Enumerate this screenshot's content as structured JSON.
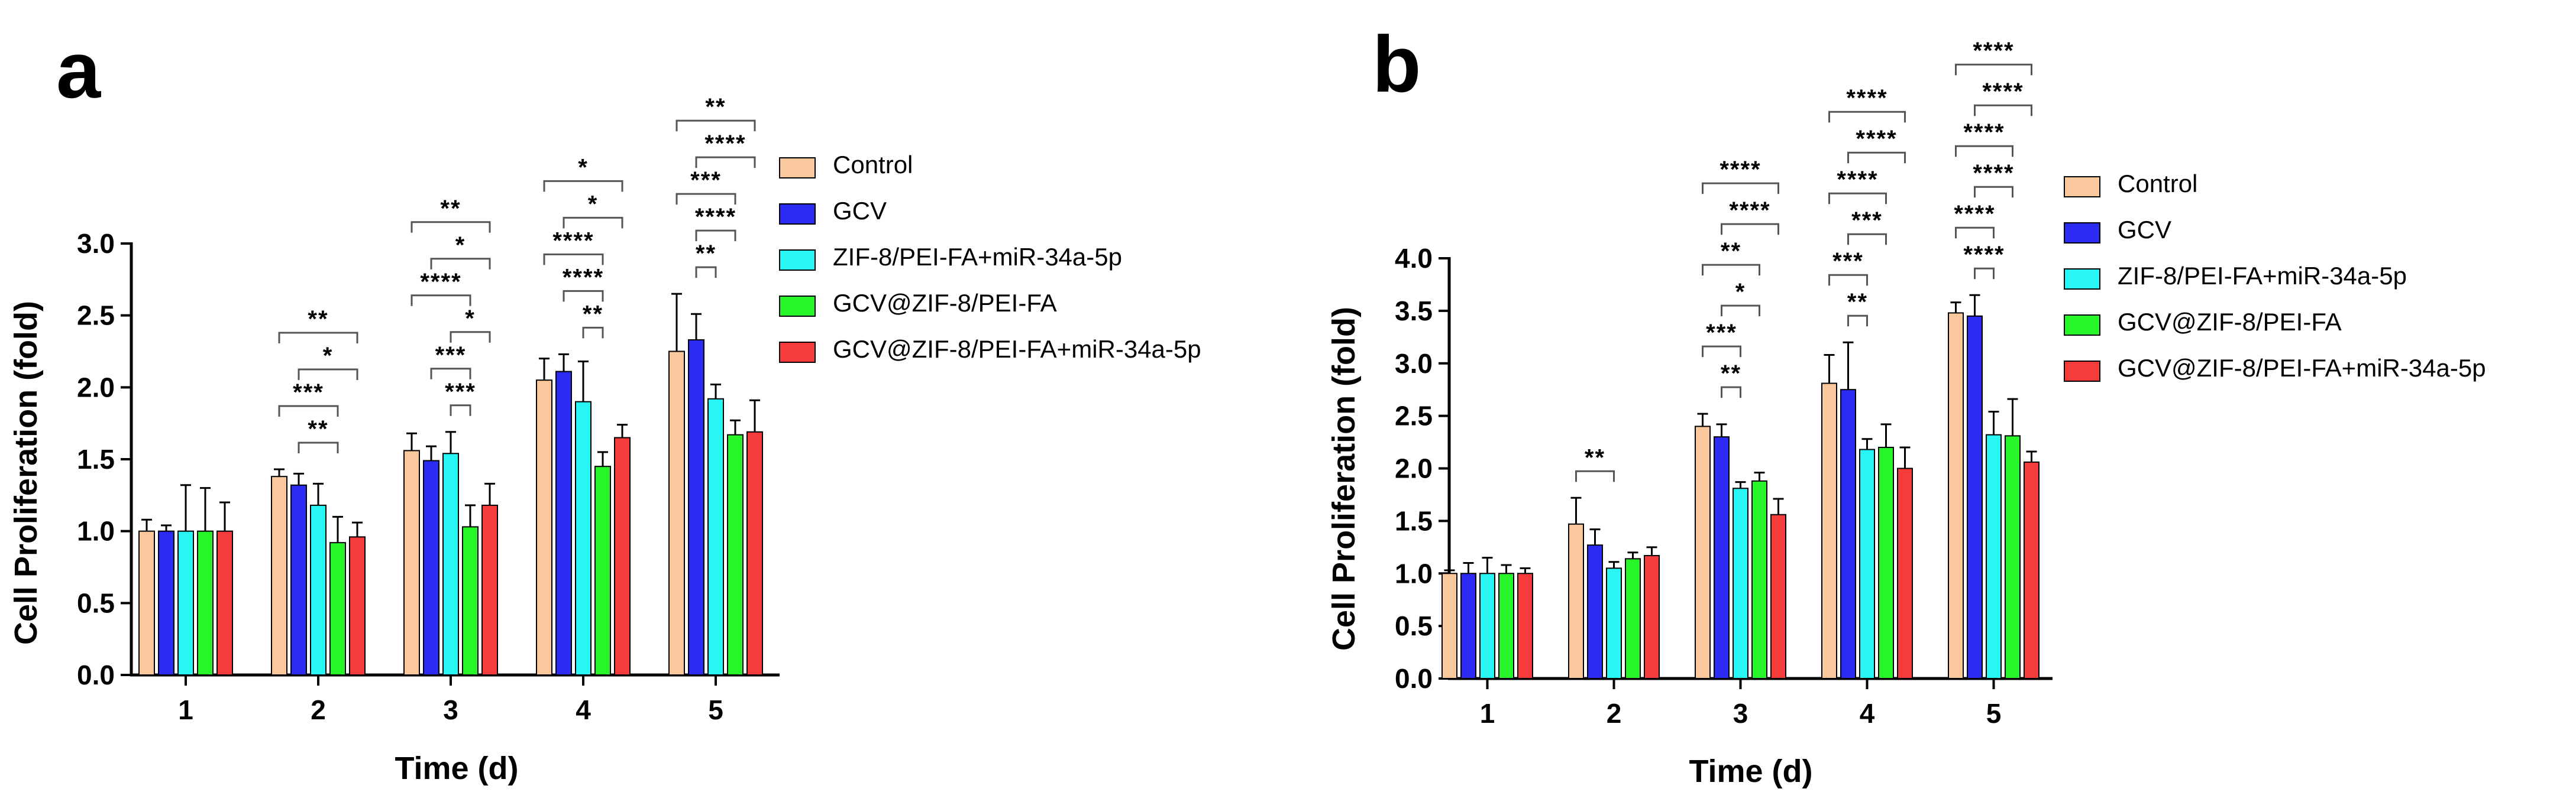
{
  "series_styles": [
    {
      "name": "Control",
      "color": "#f9c99d"
    },
    {
      "name": "GCV",
      "color": "#2b2bf5"
    },
    {
      "name": "ZIF-8/PEI-FA+miR-34a-5p",
      "color": "#29f5f5"
    },
    {
      "name": "GCV@ZIF-8/PEI-FA",
      "color": "#27f52a"
    },
    {
      "name": "GCV@ZIF-8/PEI-FA+miR-34a-5p",
      "color": "#f53b3b"
    }
  ],
  "chart_data": [
    {
      "panel": "a",
      "type": "bar",
      "xlabel": "Time (d)",
      "ylabel": "Cell Proliferation (fold)",
      "ylim": [
        0,
        3.0
      ],
      "yticks": [
        "0.0",
        "0.5",
        "1.0",
        "1.5",
        "2.0",
        "2.5",
        "3.0"
      ],
      "categories": [
        "1",
        "2",
        "3",
        "4",
        "5"
      ],
      "legend_position": "right",
      "series": [
        {
          "name": "Control",
          "values": [
            1.0,
            1.38,
            1.56,
            2.05,
            2.25
          ],
          "errors": [
            0.08,
            0.05,
            0.12,
            0.15,
            0.4
          ]
        },
        {
          "name": "GCV",
          "values": [
            1.0,
            1.32,
            1.49,
            2.11,
            2.33
          ],
          "errors": [
            0.04,
            0.08,
            0.1,
            0.12,
            0.18
          ]
        },
        {
          "name": "ZIF-8/PEI-FA+miR-34a-5p",
          "values": [
            1.0,
            1.18,
            1.54,
            1.9,
            1.92
          ],
          "errors": [
            0.32,
            0.15,
            0.15,
            0.28,
            0.1
          ]
        },
        {
          "name": "GCV@ZIF-8/PEI-FA",
          "values": [
            1.0,
            0.92,
            1.03,
            1.45,
            1.67
          ],
          "errors": [
            0.3,
            0.18,
            0.15,
            0.1,
            0.1
          ]
        },
        {
          "name": "GCV@ZIF-8/PEI-FA+miR-34a-5p",
          "values": [
            1.0,
            0.96,
            1.18,
            1.65,
            1.69
          ],
          "errors": [
            0.2,
            0.1,
            0.15,
            0.09,
            0.22
          ]
        }
      ],
      "significance": [
        {
          "day": 2,
          "from_series": 0,
          "to_series": 4,
          "label": "**"
        },
        {
          "day": 2,
          "from_series": 1,
          "to_series": 4,
          "label": "*"
        },
        {
          "day": 2,
          "from_series": 0,
          "to_series": 3,
          "label": "***"
        },
        {
          "day": 2,
          "from_series": 1,
          "to_series": 3,
          "label": "**"
        },
        {
          "day": 3,
          "from_series": 0,
          "to_series": 4,
          "label": "**"
        },
        {
          "day": 3,
          "from_series": 1,
          "to_series": 4,
          "label": "*"
        },
        {
          "day": 3,
          "from_series": 0,
          "to_series": 3,
          "label": "****"
        },
        {
          "day": 3,
          "from_series": 2,
          "to_series": 4,
          "label": "*"
        },
        {
          "day": 3,
          "from_series": 1,
          "to_series": 3,
          "label": "***"
        },
        {
          "day": 3,
          "from_series": 2,
          "to_series": 3,
          "label": "***"
        },
        {
          "day": 4,
          "from_series": 0,
          "to_series": 4,
          "label": "*"
        },
        {
          "day": 4,
          "from_series": 1,
          "to_series": 4,
          "label": "*"
        },
        {
          "day": 4,
          "from_series": 0,
          "to_series": 3,
          "label": "****"
        },
        {
          "day": 4,
          "from_series": 1,
          "to_series": 3,
          "label": "****"
        },
        {
          "day": 4,
          "from_series": 2,
          "to_series": 3,
          "label": "**"
        },
        {
          "day": 5,
          "from_series": 0,
          "to_series": 4,
          "label": "**"
        },
        {
          "day": 5,
          "from_series": 1,
          "to_series": 4,
          "label": "****"
        },
        {
          "day": 5,
          "from_series": 0,
          "to_series": 3,
          "label": "***"
        },
        {
          "day": 5,
          "from_series": 1,
          "to_series": 3,
          "label": "****"
        },
        {
          "day": 5,
          "from_series": 1,
          "to_series": 2,
          "label": "**"
        }
      ]
    },
    {
      "panel": "b",
      "type": "bar",
      "xlabel": "Time (d)",
      "ylabel": "Cell Proliferation (fold)",
      "ylim": [
        0,
        4.0
      ],
      "yticks": [
        "0.0",
        "0.5",
        "1.0",
        "1.5",
        "2.0",
        "2.5",
        "3.0",
        "3.5",
        "4.0"
      ],
      "categories": [
        "1",
        "2",
        "3",
        "4",
        "5"
      ],
      "legend_position": "right",
      "series": [
        {
          "name": "Control",
          "values": [
            1.0,
            1.47,
            2.4,
            2.81,
            3.48
          ],
          "errors": [
            0.03,
            0.25,
            0.12,
            0.27,
            0.1
          ]
        },
        {
          "name": "GCV",
          "values": [
            1.0,
            1.27,
            2.3,
            2.75,
            3.45
          ],
          "errors": [
            0.1,
            0.15,
            0.12,
            0.45,
            0.2
          ]
        },
        {
          "name": "ZIF-8/PEI-FA+miR-34a-5p",
          "values": [
            1.0,
            1.05,
            1.81,
            2.18,
            2.32
          ],
          "errors": [
            0.15,
            0.06,
            0.06,
            0.1,
            0.22
          ]
        },
        {
          "name": "GCV@ZIF-8/PEI-FA",
          "values": [
            1.0,
            1.14,
            1.88,
            2.2,
            2.31
          ],
          "errors": [
            0.08,
            0.06,
            0.08,
            0.22,
            0.35
          ]
        },
        {
          "name": "GCV@ZIF-8/PEI-FA+miR-34a-5p",
          "values": [
            1.0,
            1.17,
            1.56,
            2.0,
            2.06
          ],
          "errors": [
            0.05,
            0.08,
            0.15,
            0.2,
            0.1
          ]
        }
      ],
      "significance": [
        {
          "day": 2,
          "from_series": 0,
          "to_series": 2,
          "label": "**"
        },
        {
          "day": 3,
          "from_series": 0,
          "to_series": 4,
          "label": "****"
        },
        {
          "day": 3,
          "from_series": 1,
          "to_series": 4,
          "label": "****"
        },
        {
          "day": 3,
          "from_series": 0,
          "to_series": 3,
          "label": "**"
        },
        {
          "day": 3,
          "from_series": 1,
          "to_series": 3,
          "label": "*"
        },
        {
          "day": 3,
          "from_series": 0,
          "to_series": 2,
          "label": "***"
        },
        {
          "day": 3,
          "from_series": 1,
          "to_series": 2,
          "label": "**"
        },
        {
          "day": 4,
          "from_series": 0,
          "to_series": 4,
          "label": "****"
        },
        {
          "day": 4,
          "from_series": 1,
          "to_series": 4,
          "label": "****"
        },
        {
          "day": 4,
          "from_series": 0,
          "to_series": 3,
          "label": "****"
        },
        {
          "day": 4,
          "from_series": 1,
          "to_series": 3,
          "label": "***"
        },
        {
          "day": 4,
          "from_series": 0,
          "to_series": 2,
          "label": "***"
        },
        {
          "day": 4,
          "from_series": 1,
          "to_series": 2,
          "label": "**"
        },
        {
          "day": 5,
          "from_series": 0,
          "to_series": 4,
          "label": "****"
        },
        {
          "day": 5,
          "from_series": 1,
          "to_series": 4,
          "label": "****"
        },
        {
          "day": 5,
          "from_series": 0,
          "to_series": 3,
          "label": "****"
        },
        {
          "day": 5,
          "from_series": 1,
          "to_series": 3,
          "label": "****"
        },
        {
          "day": 5,
          "from_series": 0,
          "to_series": 2,
          "label": "****"
        },
        {
          "day": 5,
          "from_series": 1,
          "to_series": 2,
          "label": "****"
        }
      ]
    }
  ]
}
